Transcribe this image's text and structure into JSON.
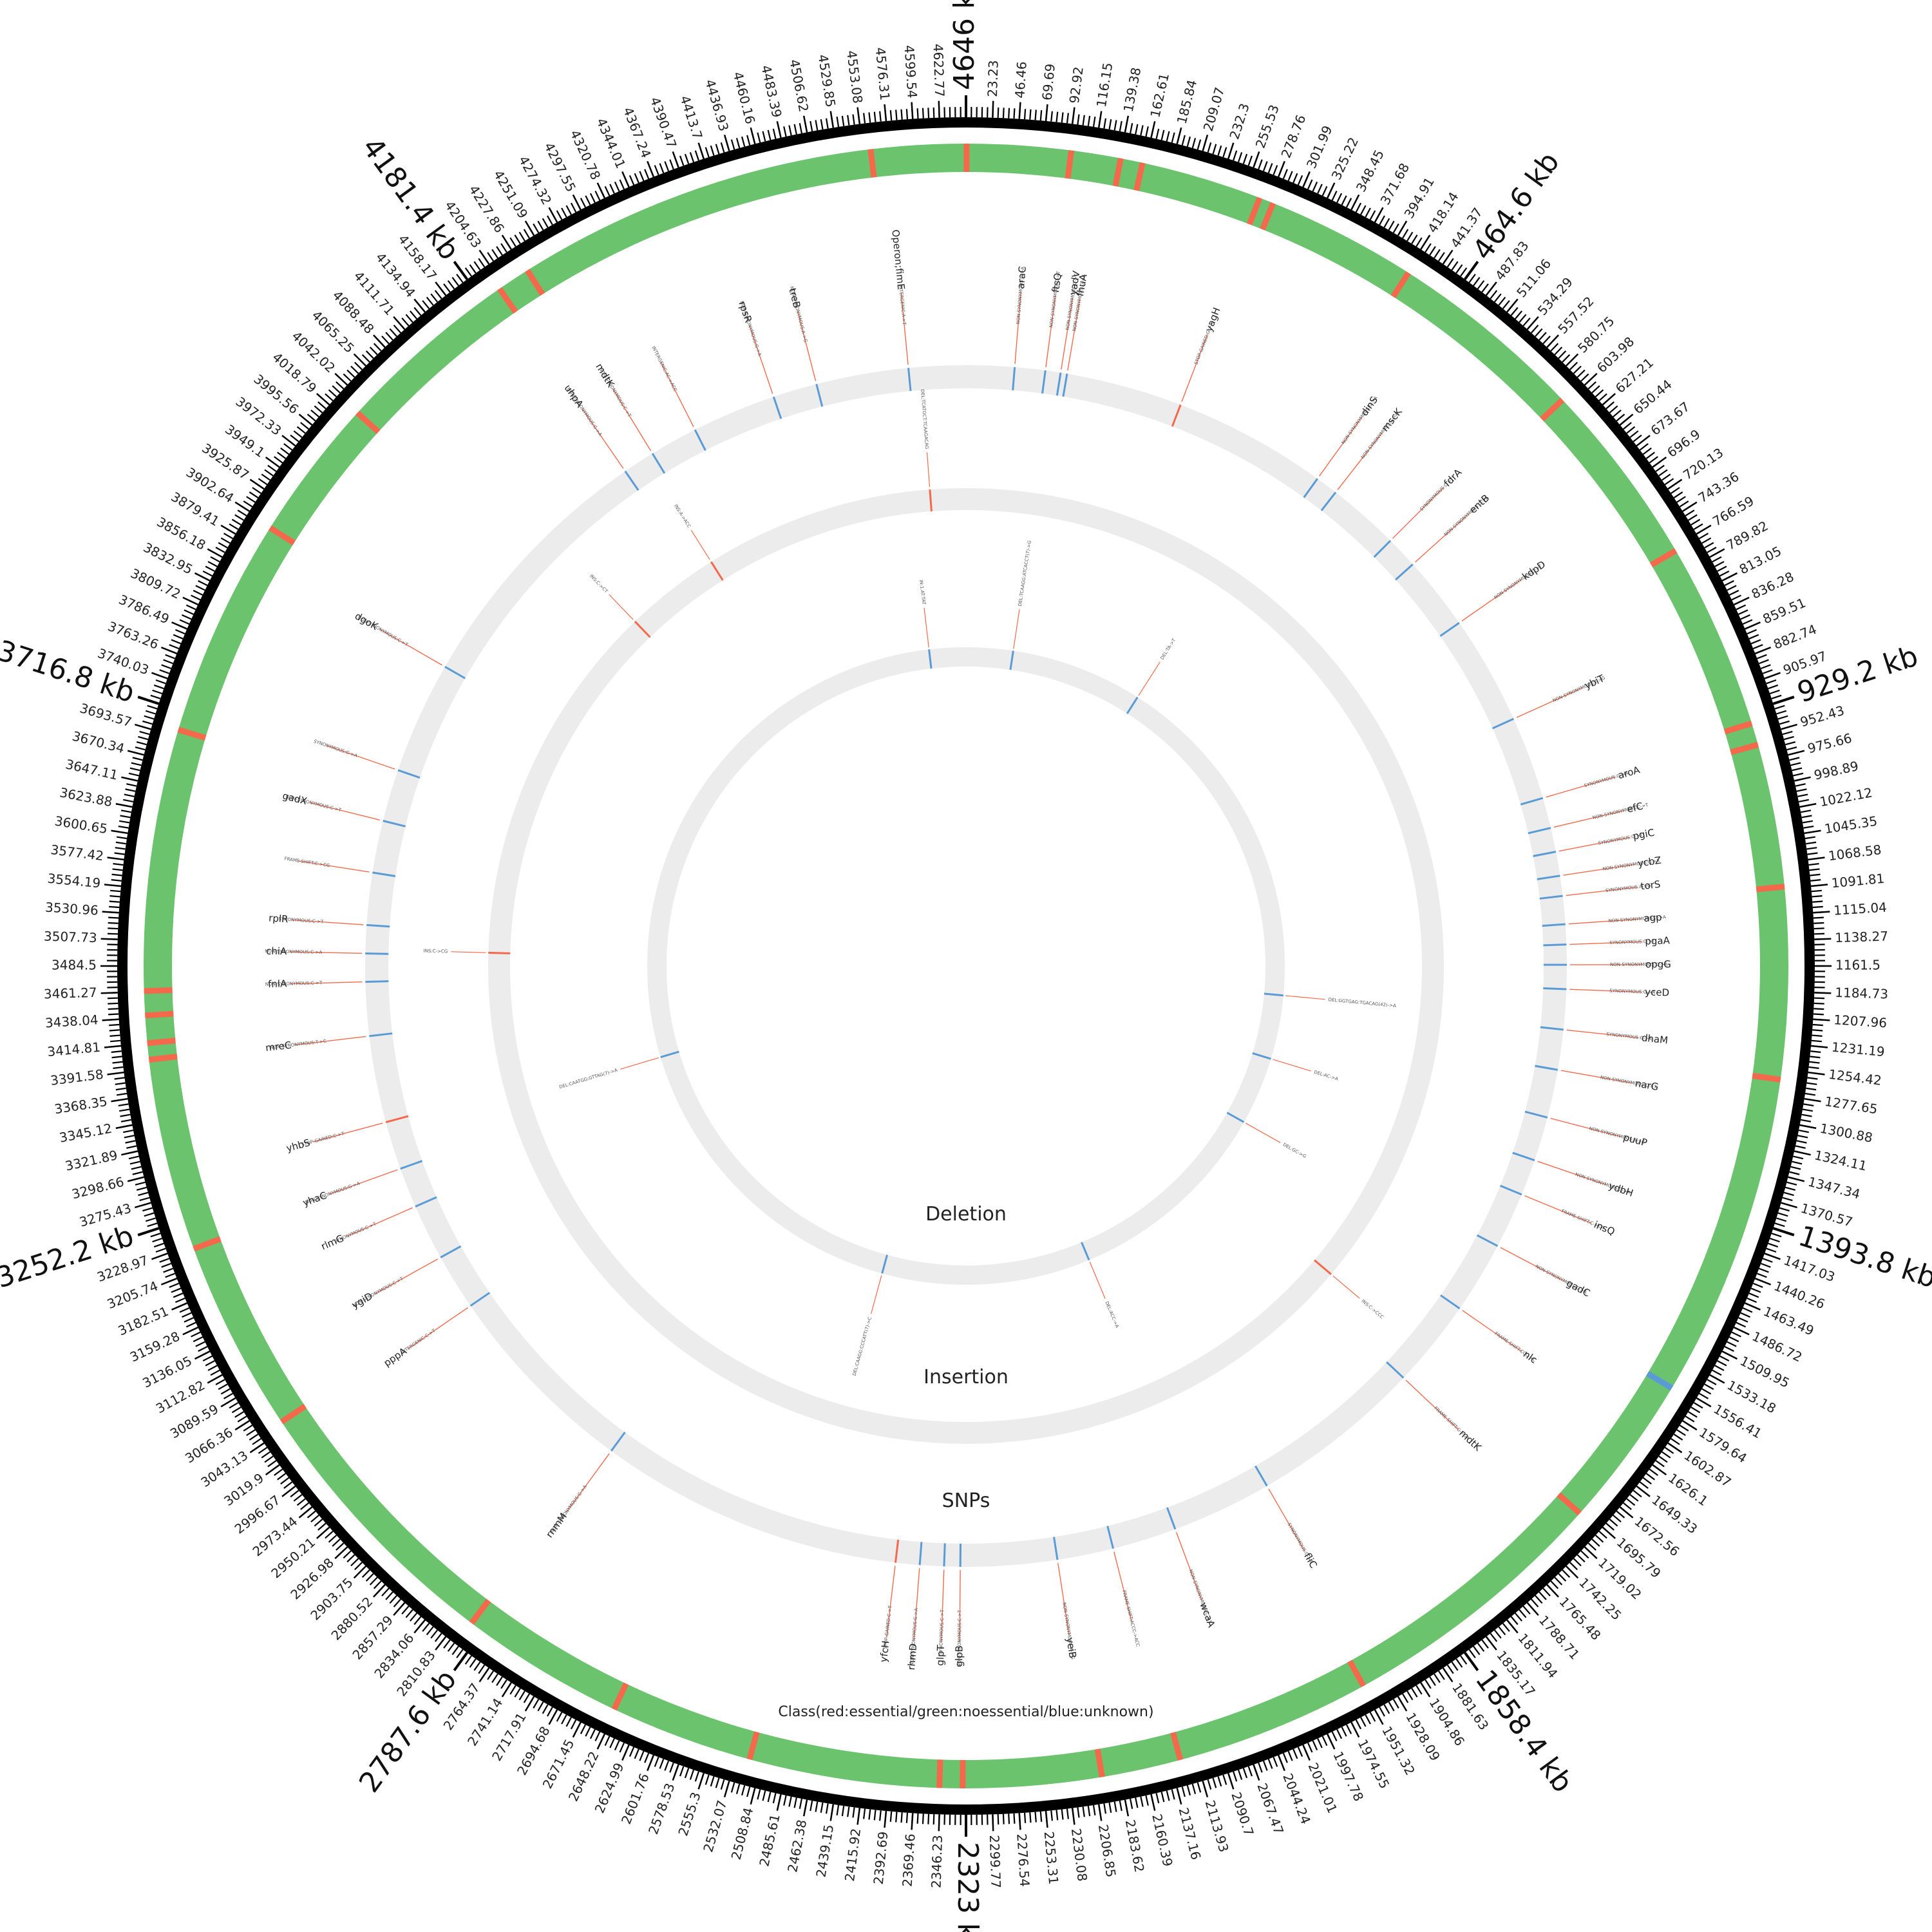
{
  "genome_length_kb": 4646,
  "colors": {
    "essential": "#f4694c",
    "noessential": "#6cc36e",
    "unknown": "#5b9bd5",
    "ring_background": "#ececec",
    "backbone": "#000000",
    "label_line": "#f4694c"
  },
  "major_labels": [
    {
      "pos": 0,
      "label": "4646 kb"
    },
    {
      "pos": 464.6,
      "label": "464.6 kb"
    },
    {
      "pos": 929.2,
      "label": "929.2 kb"
    },
    {
      "pos": 1393.8,
      "label": "1393.8 kb"
    },
    {
      "pos": 1858.4,
      "label": "1858.4 kb"
    },
    {
      "pos": 2323,
      "label": "2323 kb"
    },
    {
      "pos": 2787.6,
      "label": "2787.6 kb"
    },
    {
      "pos": 3252.2,
      "label": "3252.2 kb"
    },
    {
      "pos": 3716.8,
      "label": "3716.8 kb"
    },
    {
      "pos": 4181.4,
      "label": "4181.4 kb"
    }
  ],
  "tick_labels": [
    "23.23",
    "46.46",
    "69.69",
    "92.92",
    "116.15",
    "139.38",
    "162.61",
    "185.84",
    "209.07",
    "232.3",
    "255.53",
    "278.76",
    "301.99",
    "325.22",
    "348.45",
    "371.68",
    "394.91",
    "418.14",
    "441.37",
    "487.83",
    "511.06",
    "534.29",
    "557.52",
    "580.75",
    "603.98",
    "627.21",
    "650.44",
    "673.67",
    "696.9",
    "720.13",
    "743.36",
    "766.59",
    "789.82",
    "813.05",
    "836.28",
    "859.51",
    "882.74",
    "905.97",
    "952.43",
    "975.66",
    "998.89",
    "1022.12",
    "1045.35",
    "1068.58",
    "1091.81",
    "1115.04",
    "1138.27",
    "1161.5",
    "1184.73",
    "1207.96",
    "1231.19",
    "1254.42",
    "1277.65",
    "1300.88",
    "1324.11",
    "1347.34",
    "1370.57",
    "1417.03",
    "1440.26",
    "1463.49",
    "1486.72",
    "1509.95",
    "1533.18",
    "1556.41",
    "1579.64",
    "1602.87",
    "1626.1",
    "1649.33",
    "1672.56",
    "1695.79",
    "1719.02",
    "1742.25",
    "1765.48",
    "1788.71",
    "1811.94",
    "1835.17",
    "1881.63",
    "1904.86",
    "1928.09",
    "1951.32",
    "1974.55",
    "1997.78",
    "2021.01",
    "2044.24",
    "2067.47",
    "2090.7",
    "2113.93",
    "2137.16",
    "2160.39",
    "2183.62",
    "2206.85",
    "2230.08",
    "2253.31",
    "2276.54",
    "2299.77",
    "2346.23",
    "2369.46",
    "2392.69",
    "2415.92",
    "2439.15",
    "2462.38",
    "2485.61",
    "2508.84",
    "2532.07",
    "2555.3",
    "2578.53",
    "2601.76",
    "2624.99",
    "2648.22",
    "2671.45",
    "2694.68",
    "2717.91",
    "2741.14",
    "2764.37",
    "2810.83",
    "2834.06",
    "2857.29",
    "2880.52",
    "2903.75",
    "2926.98",
    "2950.21",
    "2973.44",
    "2996.67",
    "3019.9",
    "3043.13",
    "3066.36",
    "3089.59",
    "3112.82",
    "3136.05",
    "3159.28",
    "3182.51",
    "3205.74",
    "3228.97",
    "3275.43",
    "3298.66",
    "3321.89",
    "3345.12",
    "3368.35",
    "3391.58",
    "3414.81",
    "3438.04",
    "3461.27",
    "3484.5",
    "3507.73",
    "3530.96",
    "3554.19",
    "3577.42",
    "3600.65",
    "3623.88",
    "3647.11",
    "3670.34",
    "3693.57",
    "3740.03",
    "3763.26",
    "3786.49",
    "3809.72",
    "3832.95",
    "3856.18",
    "3879.41",
    "3902.64",
    "3925.87",
    "3949.1",
    "3972.33",
    "3995.56",
    "4018.79",
    "4042.02",
    "4065.25",
    "4088.48",
    "4111.71",
    "4134.94",
    "4158.17",
    "4204.63",
    "4227.86",
    "4251.09",
    "4274.32",
    "4297.55",
    "4320.78",
    "4344.01",
    "4367.24",
    "4390.47",
    "4413.7",
    "4436.93",
    "4460.16",
    "4483.39",
    "4506.62",
    "4529.85",
    "4553.08",
    "4576.31",
    "4599.54",
    "4622.77"
  ],
  "ring_labels": {
    "deletion": "Deletion",
    "insertion": "Insertion",
    "snps": "SNPs"
  },
  "legend": "Class(red:essential/green:noessential/blue:unknown)",
  "class_track": [
    {
      "pos": 0.5,
      "c": "essential"
    },
    {
      "pos": 95,
      "c": "essential"
    },
    {
      "pos": 140,
      "c": "essential"
    },
    {
      "pos": 160,
      "c": "essential"
    },
    {
      "pos": 270,
      "c": "essential"
    },
    {
      "pos": 283,
      "c": "essential"
    },
    {
      "pos": 420,
      "c": "essential"
    },
    {
      "pos": 600,
      "c": "essential"
    },
    {
      "pos": 770,
      "c": "essential"
    },
    {
      "pos": 940,
      "c": "essential"
    },
    {
      "pos": 960,
      "c": "essential"
    },
    {
      "pos": 1090,
      "c": "essential"
    },
    {
      "pos": 1264,
      "c": "essential"
    },
    {
      "pos": 1560,
      "c": "unknown"
    },
    {
      "pos": 1700,
      "c": "essential"
    },
    {
      "pos": 1950,
      "c": "essential"
    },
    {
      "pos": 2128,
      "c": "essential"
    },
    {
      "pos": 2200,
      "c": "essential"
    },
    {
      "pos": 2326,
      "c": "essential"
    },
    {
      "pos": 2347,
      "c": "essential"
    },
    {
      "pos": 2520,
      "c": "essential"
    },
    {
      "pos": 2650,
      "c": "essential"
    },
    {
      "pos": 2800,
      "c": "essential"
    },
    {
      "pos": 3050,
      "c": "essential"
    },
    {
      "pos": 3225,
      "c": "essential"
    },
    {
      "pos": 3400,
      "c": "essential"
    },
    {
      "pos": 3415,
      "c": "essential"
    },
    {
      "pos": 3440,
      "c": "essential"
    },
    {
      "pos": 3462,
      "c": "essential"
    },
    {
      "pos": 3700,
      "c": "essential"
    },
    {
      "pos": 3900,
      "c": "essential"
    },
    {
      "pos": 4030,
      "c": "essential"
    },
    {
      "pos": 4200,
      "c": "essential"
    },
    {
      "pos": 4230,
      "c": "essential"
    },
    {
      "pos": 4560,
      "c": "essential"
    }
  ],
  "snps": [
    {
      "pos": 60,
      "gene": "araC",
      "mut": "NON-SYNONYMOUS:G->A",
      "c": "unknown"
    },
    {
      "pos": 98,
      "gene": "ftsQ",
      "mut": "NON-SYNONYMOUS:C->T",
      "c": "unknown"
    },
    {
      "pos": 117,
      "gene": "yadV",
      "mut": "NON-SYNONYMOUS:C->T",
      "c": "unknown"
    },
    {
      "pos": 125,
      "gene": "fhuA",
      "mut": "NON-SYNONYMOUS:G->A",
      "c": "unknown"
    },
    {
      "pos": 270,
      "gene": "yagH",
      "mut": "STOP-GAINED:G->A",
      "c": "essential"
    },
    {
      "pos": 462,
      "gene": "dinS",
      "mut": "NON-SYNONYMOUS:G->A",
      "c": "unknown"
    },
    {
      "pos": 490,
      "gene": "mscK",
      "mut": "NON-SYNONYMOUS:G->A",
      "c": "unknown"
    },
    {
      "pos": 580,
      "gene": "fdrA",
      "mut": "SYNONYMOUS:C->T",
      "c": "unknown"
    },
    {
      "pos": 620,
      "gene": "entB",
      "mut": "NON-SYNONYMOUS:G->A",
      "c": "unknown"
    },
    {
      "pos": 712,
      "gene": "kdpD",
      "mut": "NON-SYNONYMOUS:C->T",
      "c": "unknown"
    },
    {
      "pos": 848,
      "gene": "ybiT",
      "mut": "NON-SYNONYMOUS:T->G",
      "c": "unknown"
    },
    {
      "pos": 952,
      "gene": "aroA",
      "mut": "SYNONYMOUS:G->A",
      "c": "unknown"
    },
    {
      "pos": 990,
      "gene": "efC",
      "mut": "NON-SYNONYMOUS:C->T",
      "c": "unknown"
    },
    {
      "pos": 1020,
      "gene": "pgiC",
      "mut": "SYNONYMOUS:C->T",
      "c": "unknown"
    },
    {
      "pos": 1050,
      "gene": "ycbZ",
      "mut": "NON-SYNONYMOUS:C->A",
      "c": "unknown"
    },
    {
      "pos": 1075,
      "gene": "torS",
      "mut": "SYNONYMOUS:A->G",
      "c": "unknown"
    },
    {
      "pos": 1110,
      "gene": "agp",
      "mut": "NON-SYNONYMOUS:G->A",
      "c": "unknown"
    },
    {
      "pos": 1135,
      "gene": "pgaA",
      "mut": "SYNONYMOUS:C->T",
      "c": "unknown"
    },
    {
      "pos": 1160,
      "gene": "opgG",
      "mut": "NON-SYNONYMOUS:G->A",
      "c": "unknown"
    },
    {
      "pos": 1190,
      "gene": "yceD",
      "mut": "SYNONYMOUS:G->A",
      "c": "unknown"
    },
    {
      "pos": 1240,
      "gene": "dhaM",
      "mut": "SYNONYMOUS:G->A",
      "c": "unknown"
    },
    {
      "pos": 1290,
      "gene": "narG",
      "mut": "NON-SYNONYMOUS:C->T",
      "c": "unknown"
    },
    {
      "pos": 1350,
      "gene": "puuP",
      "mut": "NON-SYNONYMOUS:A->C",
      "c": "unknown"
    },
    {
      "pos": 1405,
      "gene": "ydbH",
      "mut": "NON-SYNONYMOUS:G->A",
      "c": "unknown"
    },
    {
      "pos": 1450,
      "gene": "insQ",
      "mut": "FRAME-SHIFT:C->CA",
      "c": "unknown"
    },
    {
      "pos": 1520,
      "gene": "gadC",
      "mut": "NON-SYNONYMOUS:C->A",
      "c": "unknown"
    },
    {
      "pos": 1610,
      "gene": "nlc",
      "mut": "FRAME-SHIFT:CCC->C",
      "c": "unknown"
    },
    {
      "pos": 1720,
      "gene": "mdtK",
      "mut": "FRAME-SHIFT:G->GA",
      "c": "unknown"
    },
    {
      "pos": 1935,
      "gene": "fliC",
      "mut": "SYNONYMOUS:G->T",
      "c": "unknown"
    },
    {
      "pos": 2060,
      "gene": "wcaA",
      "mut": "NON-SYNONYMOUS:C->T",
      "c": "unknown"
    },
    {
      "pos": 2140,
      "gene": "",
      "mut": "FRAME-SHIFT:ACCC->ACC",
      "c": "unknown"
    },
    {
      "pos": 2210,
      "gene": "yeiB",
      "mut": "NON-SYNONYMOUS:A->G",
      "c": "unknown"
    },
    {
      "pos": 2330,
      "gene": "glpB",
      "mut": "NON-SYNONYMOUS:C->T",
      "c": "unknown"
    },
    {
      "pos": 2350,
      "gene": "glpT",
      "mut": "SYNONYMOUS:C->T",
      "c": "unknown"
    },
    {
      "pos": 2380,
      "gene": "rhmD",
      "mut": "NON-SYNONYMOUS:G->A",
      "c": "unknown"
    },
    {
      "pos": 2410,
      "gene": "yfcH",
      "mut": "STOP-GAINED:C->T",
      "c": "essential"
    },
    {
      "pos": 2790,
      "gene": "rnmM",
      "mut": "NON-SYNONYMOUS:G->A",
      "c": "unknown"
    },
    {
      "pos": 3040,
      "gene": "pppA",
      "mut": "INTERGENIC:C->T",
      "c": "unknown"
    },
    {
      "pos": 3110,
      "gene": "ygiD",
      "mut": "NON-SYNONYMOUS:C->T",
      "c": "unknown"
    },
    {
      "pos": 3180,
      "gene": "rlmG",
      "mut": "SYNONYMOUS:C->T",
      "c": "unknown"
    },
    {
      "pos": 3230,
      "gene": "yhaC",
      "mut": "NON-SYNONYMOUS:G->A",
      "c": "unknown"
    },
    {
      "pos": 3290,
      "gene": "yhbS",
      "mut": "STOP-GAINED:C->T",
      "c": "essential"
    },
    {
      "pos": 3398,
      "gene": "mreC",
      "mut": "NON-SYNONYMOUS:T->C",
      "c": "unknown"
    },
    {
      "pos": 3465,
      "gene": "fnlA",
      "mut": "NON-SYNONYMOUS:C->T",
      "c": "unknown"
    },
    {
      "pos": 3500,
      "gene": "chiA",
      "mut": "NON-SYNONYMOUS:C->A",
      "c": "unknown"
    },
    {
      "pos": 3535,
      "gene": "rplR",
      "mut": "SYNONYMOUS:C->T",
      "c": "unknown"
    },
    {
      "pos": 3600,
      "gene": "",
      "mut": "FRAME-SHIFT:C->CG",
      "c": "unknown"
    },
    {
      "pos": 3665,
      "gene": "gadX",
      "mut": "NON-SYNONYMOUS:C->T",
      "c": "unknown"
    },
    {
      "pos": 3730,
      "gene": "",
      "mut": "SYNONYMOUS:G->A",
      "c": "unknown"
    },
    {
      "pos": 3870,
      "gene": "dgoK",
      "mut": "NON-SYNONYMOUS:C->T",
      "c": "unknown"
    },
    {
      "pos": 4200,
      "gene": "uhpA",
      "mut": "NON-SYNONYMOUS:G->A",
      "c": "unknown"
    },
    {
      "pos": 4240,
      "gene": "mdtK",
      "mut": "NON-SYNONYMOUS:C->T",
      "c": "unknown"
    },
    {
      "pos": 4300,
      "gene": "",
      "mut": "INTERGENIC:AC->ACC",
      "c": "unknown"
    },
    {
      "pos": 4405,
      "gene": "rpsR",
      "mut": "NON-SYNONYMOUS:G->A",
      "c": "unknown"
    },
    {
      "pos": 4460,
      "gene": "treB",
      "mut": "NON-SYNONYMOUS:A->G",
      "c": "unknown"
    },
    {
      "pos": 4575,
      "gene": "Operon;fimE",
      "mut": "INTERGENIC:A->T",
      "c": "unknown"
    }
  ],
  "insertions": [
    {
      "pos": 4080,
      "label": "INS:C->CT"
    },
    {
      "pos": 4230,
      "label": "INS:A->ACC"
    },
    {
      "pos": 3505,
      "label": "INS:C->CG"
    },
    {
      "pos": 4590,
      "label": "DEL:TCATGCT:TCAAGACAG"
    },
    {
      "pos": 1680,
      "label": "INS:C->CCC"
    }
  ],
  "deletions": [
    {
      "pos": 110,
      "label": "DEL:TCAAGG:ATCACCT(7)->G"
    },
    {
      "pos": 420,
      "label": "DEL:TA->T"
    },
    {
      "pos": 1230,
      "label": "DEL:GGTGAG:TGACAG(42)->A"
    },
    {
      "pos": 1380,
      "label": "DEL:AC->A"
    },
    {
      "pos": 1540,
      "label": "DEL:GC->G"
    },
    {
      "pos": 2030,
      "label": "DEL:ACC->A"
    },
    {
      "pos": 2520,
      "label": "DEL:CAAGG:CCCATT(7)->C"
    },
    {
      "pos": 3270,
      "label": "DEL:CAATGG:GTTAG(7)->A"
    },
    {
      "pos": 4560,
      "label": "IN:1.AT:TAT"
    }
  ]
}
